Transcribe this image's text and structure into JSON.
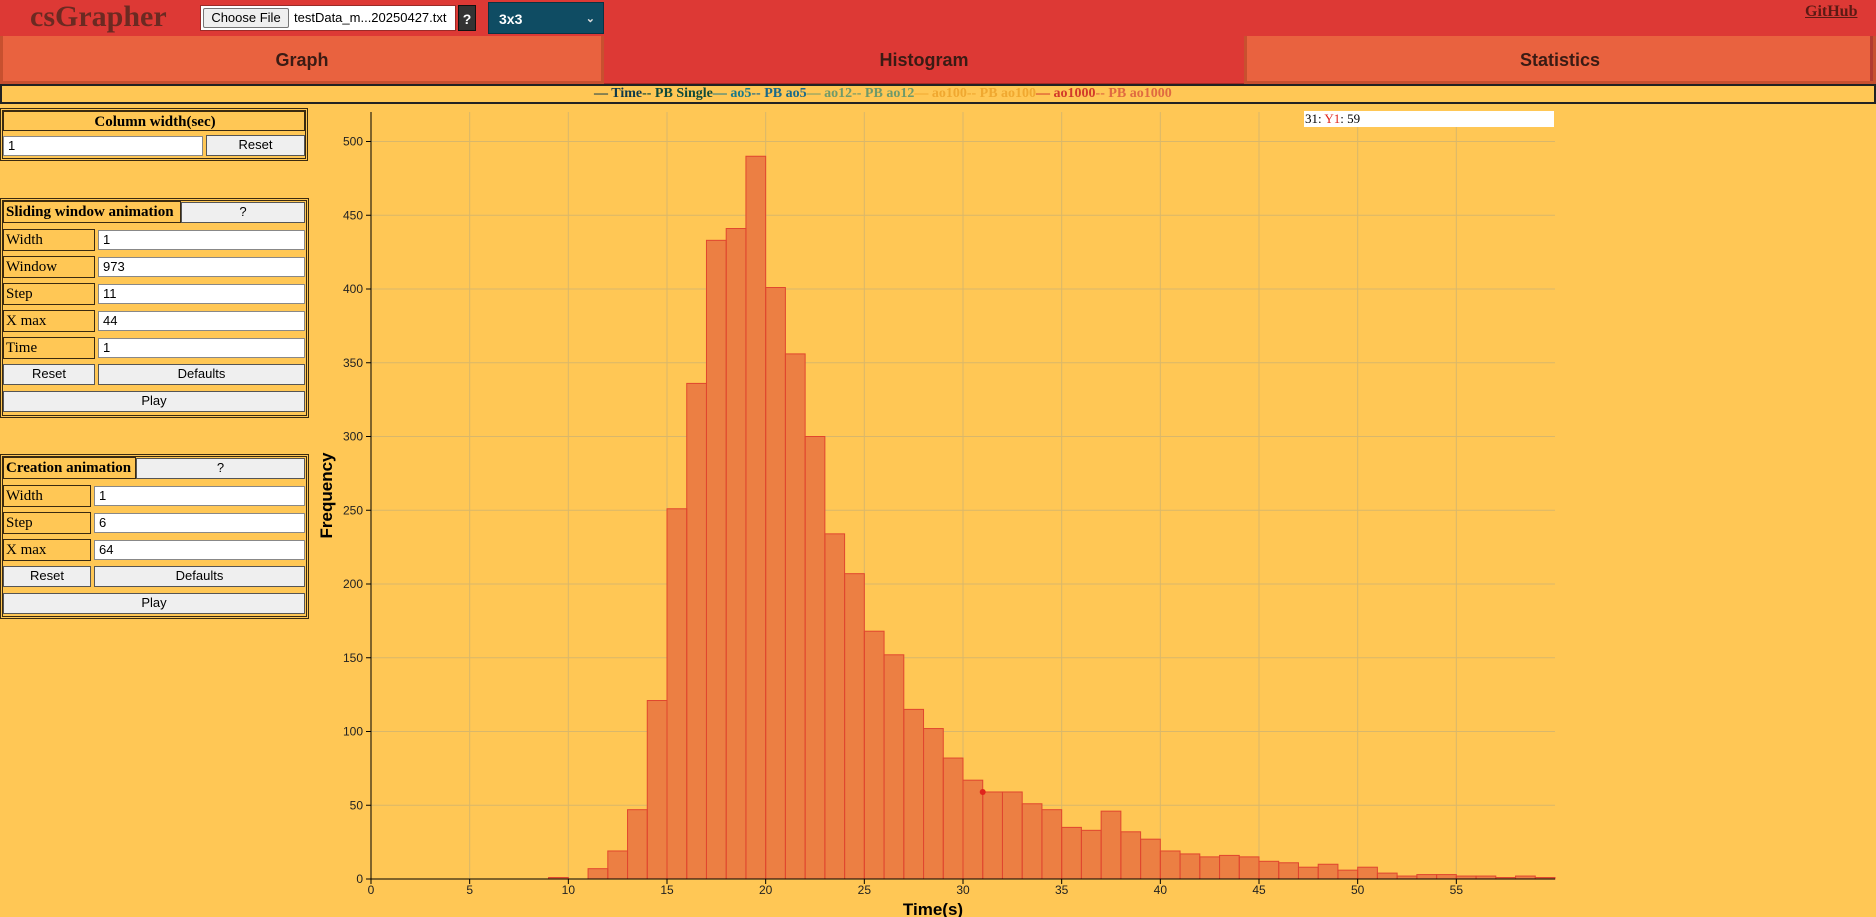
{
  "app": {
    "title": "csGrapher",
    "github_label": "GitHub"
  },
  "toolbar": {
    "choose_file_label": "Choose File",
    "file_name": "testData_m...20250427.txt",
    "help_label": "?",
    "cube_select": "3x3"
  },
  "tabs": [
    {
      "label": "Graph",
      "active": false
    },
    {
      "label": "Histogram",
      "active": true
    },
    {
      "label": "Statistics",
      "active": false
    }
  ],
  "legend": [
    {
      "label": "Time",
      "color": "#0e3a4a",
      "dash": false
    },
    {
      "label": "PB Single",
      "color": "#0e4a3a",
      "dash": true
    },
    {
      "label": "ao5",
      "color": "#1a7a8a",
      "dash": false
    },
    {
      "label": "PB ao5",
      "color": "#1a6a8a",
      "dash": true
    },
    {
      "label": "ao12",
      "color": "#6f9a6a",
      "dash": false
    },
    {
      "label": "PB ao12",
      "color": "#6f9a6a",
      "dash": true
    },
    {
      "label": "ao100",
      "color": "#f0a830",
      "dash": false
    },
    {
      "label": "PB ao100",
      "color": "#f0a830",
      "dash": true
    },
    {
      "label": "ao1000",
      "color": "#d23a2a",
      "dash": false
    },
    {
      "label": "PB ao1000",
      "color": "#e06a40",
      "dash": true
    }
  ],
  "column_width": {
    "title": "Column width(sec)",
    "value": "1",
    "reset_label": "Reset"
  },
  "sliding": {
    "title": "Sliding window animation",
    "help_label": "?",
    "fields": [
      {
        "label": "Width",
        "value": "1"
      },
      {
        "label": "Window",
        "value": "973"
      },
      {
        "label": "Step",
        "value": "11"
      },
      {
        "label": "X max",
        "value": "44"
      },
      {
        "label": "Time",
        "value": "1"
      }
    ],
    "reset_label": "Reset",
    "defaults_label": "Defaults",
    "play_label": "Play"
  },
  "creation": {
    "title": "Creation animation",
    "help_label": "?",
    "fields": [
      {
        "label": "Width",
        "value": "1"
      },
      {
        "label": "Step",
        "value": "6"
      },
      {
        "label": "X max",
        "value": "64"
      }
    ],
    "reset_label": "Reset",
    "defaults_label": "Defaults",
    "play_label": "Play"
  },
  "hover": {
    "x_value": "31",
    "sep": ": ",
    "series": "Y1",
    "colon": ": ",
    "y_value": "59"
  },
  "chart_data": {
    "type": "bar",
    "ylabel": "Frequency",
    "xlabel": "Time(s)",
    "xlim": [
      0,
      60
    ],
    "ylim": [
      0,
      520
    ],
    "xticks": [
      0,
      5,
      10,
      15,
      20,
      25,
      30,
      35,
      40,
      45,
      50,
      55
    ],
    "yticks": [
      0,
      50,
      100,
      150,
      200,
      250,
      300,
      350,
      400,
      450,
      500
    ],
    "grid": true,
    "bar_color": "#ec7f43",
    "bar_edge": "#e0462e",
    "bin_width": 1,
    "bins": [
      [
        9,
        1
      ],
      [
        10,
        0
      ],
      [
        11,
        7
      ],
      [
        12,
        19
      ],
      [
        13,
        47
      ],
      [
        14,
        121
      ],
      [
        15,
        251
      ],
      [
        16,
        336
      ],
      [
        17,
        433
      ],
      [
        18,
        441
      ],
      [
        19,
        490
      ],
      [
        20,
        401
      ],
      [
        21,
        356
      ],
      [
        22,
        300
      ],
      [
        23,
        234
      ],
      [
        24,
        207
      ],
      [
        25,
        168
      ],
      [
        26,
        152
      ],
      [
        27,
        115
      ],
      [
        28,
        102
      ],
      [
        29,
        82
      ],
      [
        30,
        67
      ],
      [
        31,
        59
      ],
      [
        32,
        59
      ],
      [
        33,
        51
      ],
      [
        34,
        47
      ],
      [
        35,
        35
      ],
      [
        36,
        33
      ],
      [
        37,
        46
      ],
      [
        38,
        32
      ],
      [
        39,
        27
      ],
      [
        40,
        19
      ],
      [
        41,
        17
      ],
      [
        42,
        15
      ],
      [
        43,
        16
      ],
      [
        44,
        15
      ],
      [
        45,
        12
      ],
      [
        46,
        11
      ],
      [
        47,
        8
      ],
      [
        48,
        10
      ],
      [
        49,
        6
      ],
      [
        50,
        8
      ],
      [
        51,
        4
      ],
      [
        52,
        2
      ],
      [
        53,
        3
      ],
      [
        54,
        3
      ],
      [
        55,
        2
      ],
      [
        56,
        2
      ],
      [
        57,
        1
      ],
      [
        58,
        2
      ],
      [
        59,
        1
      ]
    ],
    "highlight_point": {
      "x": 31,
      "y": 59,
      "color": "#e0241c"
    }
  }
}
